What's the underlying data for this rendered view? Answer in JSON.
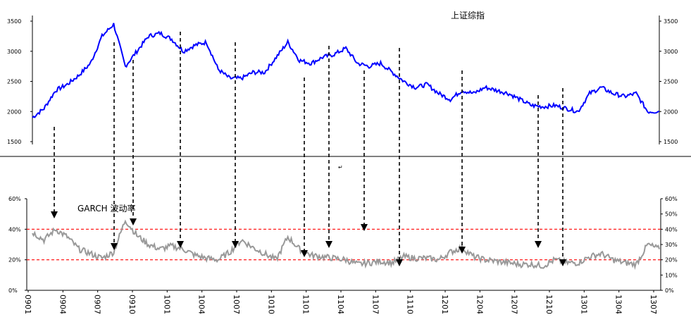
{
  "chart_data": [
    {
      "type": "line",
      "title": "上证综指",
      "ylim": [
        1500,
        3500
      ],
      "yticks": [
        "1500",
        "2000",
        "2500",
        "3000",
        "3500"
      ],
      "grid": false,
      "color": "#0000ff",
      "series": [
        {
          "name": "",
          "x": [
            "0901",
            "0902",
            "0903",
            "0904",
            "0905",
            "0906",
            "0907",
            "0908",
            "0909",
            "0910",
            "0911",
            "0912",
            "1001",
            "1002",
            "1003",
            "1004",
            "1005",
            "1006",
            "1007",
            "1008",
            "1009",
            "1010",
            "1011",
            "1012",
            "1101",
            "1102",
            "1103",
            "1104",
            "1105",
            "1106",
            "1107",
            "1108",
            "1109",
            "1110",
            "1111",
            "1112",
            "1201",
            "1202",
            "1203",
            "1204",
            "1205",
            "1206",
            "1207",
            "1208",
            "1209",
            "1210",
            "1211",
            "1212",
            "1301",
            "1302",
            "1303",
            "1304",
            "1305",
            "1306",
            "1307"
          ],
          "values": [
            1900,
            2050,
            2350,
            2450,
            2600,
            2800,
            3250,
            3450,
            2750,
            3000,
            3250,
            3300,
            3200,
            3000,
            3100,
            3150,
            2700,
            2550,
            2550,
            2650,
            2650,
            2900,
            3150,
            2850,
            2800,
            2900,
            2950,
            3050,
            2800,
            2750,
            2800,
            2650,
            2500,
            2400,
            2450,
            2300,
            2200,
            2350,
            2300,
            2400,
            2350,
            2300,
            2200,
            2100,
            2080,
            2100,
            2050,
            2000,
            2300,
            2400,
            2300,
            2250,
            2300,
            2000,
            2000
          ]
        }
      ]
    },
    {
      "type": "line",
      "title": "GARCH 波动率",
      "ylim": [
        0,
        60
      ],
      "yticks_left": [
        "0%",
        "20%",
        "40%",
        "60%"
      ],
      "yticks_right": [
        "0%",
        "10%",
        "20%",
        "30%",
        "40%",
        "50%",
        "60%"
      ],
      "reference_lines": [
        20,
        40
      ],
      "reference_color": "#ff0000",
      "color": "#999999",
      "x_tick_labels": [
        "0901",
        "0904",
        "0907",
        "0910",
        "1001",
        "1004",
        "1007",
        "1010",
        "1101",
        "1104",
        "1107",
        "1110",
        "1201",
        "1204",
        "1207",
        "1210",
        "1301",
        "1304",
        "1307"
      ],
      "series": [
        {
          "name": "",
          "x": [
            "0901",
            "0902",
            "0903",
            "0904",
            "0905",
            "0906",
            "0907",
            "0908",
            "0909",
            "0910",
            "0911",
            "0912",
            "1001",
            "1002",
            "1003",
            "1004",
            "1005",
            "1006",
            "1007",
            "1008",
            "1009",
            "1010",
            "1011",
            "1012",
            "1101",
            "1102",
            "1103",
            "1104",
            "1105",
            "1106",
            "1107",
            "1108",
            "1109",
            "1110",
            "1111",
            "1112",
            "1201",
            "1202",
            "1203",
            "1204",
            "1205",
            "1206",
            "1207",
            "1208",
            "1209",
            "1210",
            "1211",
            "1212",
            "1301",
            "1302",
            "1303",
            "1304",
            "1305",
            "1306",
            "1307"
          ],
          "values": [
            38,
            33,
            40,
            35,
            27,
            24,
            21,
            25,
            46,
            36,
            30,
            27,
            29,
            27,
            23,
            21,
            20,
            25,
            33,
            28,
            24,
            20,
            35,
            27,
            23,
            22,
            21,
            20,
            17,
            18,
            19,
            18,
            22,
            21,
            21,
            20,
            25,
            28,
            22,
            20,
            19,
            18,
            17,
            17,
            16,
            20,
            18,
            18,
            22,
            24,
            20,
            18,
            17,
            30,
            27
          ]
        }
      ]
    }
  ],
  "annotation_glyph": "↵"
}
